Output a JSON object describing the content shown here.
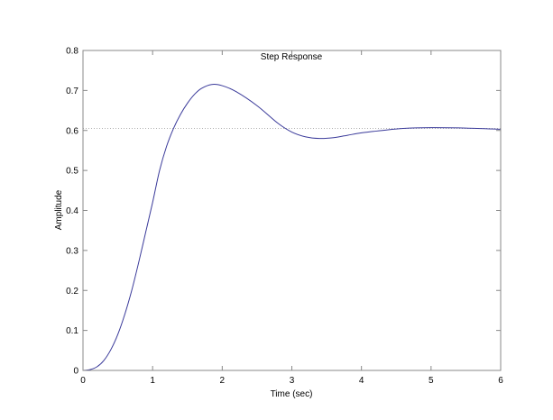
{
  "chart_data": {
    "type": "line",
    "title": "Step Response",
    "xlabel": "Time (sec)",
    "ylabel": "Amplitude",
    "xlim": [
      0,
      6
    ],
    "ylim": [
      0,
      0.8
    ],
    "xticks": [
      "0",
      "1",
      "2",
      "3",
      "4",
      "5",
      "6"
    ],
    "yticks": [
      "0",
      "0.1",
      "0.2",
      "0.3",
      "0.4",
      "0.5",
      "0.6",
      "0.7",
      "0.8"
    ],
    "grid": false,
    "steady_state": 0.605,
    "series": [
      {
        "color": "#3a3a9a",
        "x": [
          0,
          0.1,
          0.2,
          0.3,
          0.4,
          0.5,
          0.6,
          0.7,
          0.8,
          0.9,
          1.0,
          1.1,
          1.2,
          1.3,
          1.4,
          1.5,
          1.6,
          1.7,
          1.85,
          2.0,
          2.2,
          2.5,
          2.8,
          3.0,
          3.2,
          3.4,
          3.6,
          3.8,
          4.0,
          4.3,
          4.6,
          5.0,
          5.5,
          6.0
        ],
        "y": [
          0,
          0.002,
          0.009,
          0.025,
          0.052,
          0.09,
          0.14,
          0.2,
          0.27,
          0.345,
          0.42,
          0.5,
          0.56,
          0.605,
          0.64,
          0.668,
          0.69,
          0.705,
          0.715,
          0.712,
          0.697,
          0.662,
          0.618,
          0.596,
          0.584,
          0.58,
          0.582,
          0.588,
          0.594,
          0.6,
          0.605,
          0.607,
          0.606,
          0.603
        ]
      }
    ],
    "steady_state_color": "#b0b0b0",
    "axis_color": "#888888"
  }
}
